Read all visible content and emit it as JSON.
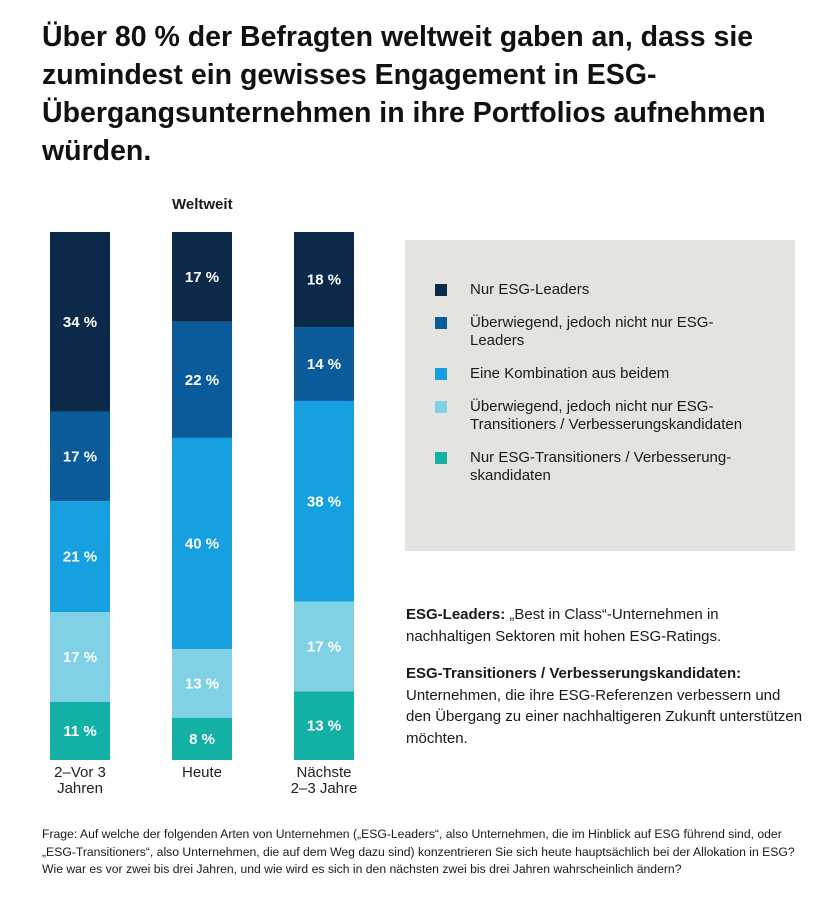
{
  "title": "Über 80 % der Befragten weltweit gaben an, dass sie zumindest ein gewisses Engagement in ESG-Übergangsunternehmen in ihre Portfolios aufnehmen würden.",
  "chart_data": {
    "type": "bar",
    "stacked": true,
    "orientation": "vertical",
    "normalized_percent": true,
    "subtitle": "Weltweit",
    "categories": [
      [
        "2–Vor 3",
        "Jahren"
      ],
      [
        "Heute"
      ],
      [
        "Nächste",
        "2–3 Jahre"
      ]
    ],
    "series": [
      {
        "name": "Nur ESG-Leaders",
        "color": "#0b2a4a",
        "values": [
          34,
          17,
          18
        ]
      },
      {
        "name": "Überwiegend, jedoch nicht nur ESG-Leaders",
        "color": "#0b5a99",
        "values": [
          17,
          22,
          14
        ]
      },
      {
        "name": "Eine Kombination aus beidem",
        "color": "#16a0e0",
        "values": [
          21,
          40,
          38
        ]
      },
      {
        "name": "Überwiegend, jedoch nicht nur ESG-Transitioners / Verbesserungskandidaten",
        "color": "#80d0e6",
        "values": [
          17,
          13,
          17
        ]
      },
      {
        "name": "Nur ESG-Transitioners / Verbesserung-skandidaten",
        "color": "#13b0a6",
        "values": [
          11,
          8,
          13
        ]
      }
    ],
    "value_suffix": " %",
    "ylim": [
      0,
      100
    ],
    "xlabel": "",
    "ylabel": "",
    "grid": false,
    "legend": "right"
  },
  "legend": {
    "items": [
      {
        "text": "Nur ESG-Leaders",
        "color": "#0b2a4a"
      },
      {
        "text": "Überwiegend, jedoch nicht nur ESG-Leaders",
        "color": "#0b5a99"
      },
      {
        "text": "Eine Kombination aus beidem",
        "color": "#16a0e0"
      },
      {
        "text": "Überwiegend, jedoch nicht nur ESG-Transitioners / Verbesserungskandidaten",
        "color": "#80d0e6"
      },
      {
        "text": "Nur ESG-Transitioners / Verbesserung-skandidaten",
        "color": "#13b0a6"
      }
    ]
  },
  "definitions": [
    {
      "term": "ESG-Leaders:",
      "text": " „Best in Class“-Unternehmen in nachhaltigen Sektoren mit hohen ESG-Ratings."
    },
    {
      "term": "ESG-Transitioners / Verbesserungskandidaten:",
      "text": " Unternehmen, die ihre ESG-Referenzen verbessern und den Übergang zu einer nachhaltigeren Zukunft unterstützen möchten."
    }
  ],
  "footnote": "Frage: Auf welche der folgenden Arten von Unternehmen („ESG-Leaders“, also Unternehmen, die im Hinblick auf ESG führend sind, oder „ESG-Transitioners“, also Unternehmen, die auf dem Weg dazu sind) konzentrieren Sie sich heute hauptsächlich bei der Allokation in ESG? Wie war es vor zwei bis drei Jahren, und wie wird es sich in den nächsten zwei bis drei Jahren wahrscheinlich ändern?"
}
